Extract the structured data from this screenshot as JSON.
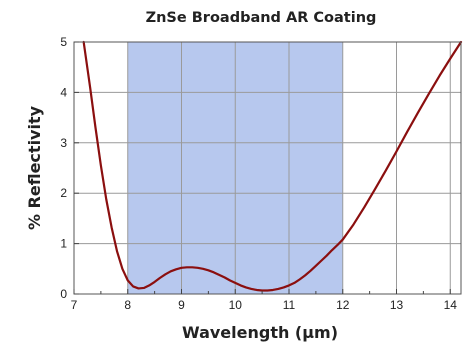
{
  "chart_data": {
    "type": "line",
    "title": "ZnSe Broadband AR Coating",
    "xlabel": "Wavelength (µm)",
    "ylabel": "% Reflectivity",
    "xlim": [
      7,
      14.2
    ],
    "ylim": [
      0,
      5
    ],
    "x_ticks": [
      "7",
      "8",
      "9",
      "10",
      "11",
      "12",
      "13",
      "14"
    ],
    "y_ticks": [
      "0",
      "1",
      "2",
      "3",
      "4",
      "5"
    ],
    "grid": true,
    "shaded_band": {
      "x_start": 8,
      "x_end": 12,
      "color": "#b7c8ee"
    },
    "series": [
      {
        "color": "#8b0f0f",
        "x": [
          7.18,
          7.3,
          7.4,
          7.5,
          7.6,
          7.7,
          7.8,
          7.9,
          8.0,
          8.1,
          8.2,
          8.3,
          8.4,
          8.5,
          8.6,
          8.7,
          8.8,
          8.9,
          9.0,
          9.1,
          9.2,
          9.3,
          9.4,
          9.5,
          9.6,
          9.7,
          9.8,
          9.9,
          10.0,
          10.1,
          10.2,
          10.3,
          10.4,
          10.5,
          10.6,
          10.7,
          10.8,
          10.9,
          11.0,
          11.1,
          11.2,
          11.3,
          11.4,
          11.5,
          11.6,
          11.7,
          11.8,
          11.9,
          12.0,
          12.2,
          12.4,
          12.6,
          12.8,
          13.0,
          13.2,
          13.4,
          13.6,
          13.8,
          14.0,
          14.2
        ],
        "values": [
          5.0,
          4.1,
          3.3,
          2.55,
          1.88,
          1.32,
          0.85,
          0.5,
          0.27,
          0.15,
          0.11,
          0.12,
          0.17,
          0.24,
          0.32,
          0.39,
          0.45,
          0.49,
          0.52,
          0.53,
          0.53,
          0.52,
          0.5,
          0.47,
          0.43,
          0.38,
          0.33,
          0.27,
          0.22,
          0.17,
          0.13,
          0.1,
          0.08,
          0.07,
          0.07,
          0.08,
          0.1,
          0.13,
          0.17,
          0.22,
          0.29,
          0.37,
          0.46,
          0.56,
          0.66,
          0.76,
          0.87,
          0.97,
          1.08,
          1.38,
          1.72,
          2.08,
          2.45,
          2.83,
          3.22,
          3.6,
          3.97,
          4.33,
          4.67,
          5.0
        ]
      }
    ]
  }
}
